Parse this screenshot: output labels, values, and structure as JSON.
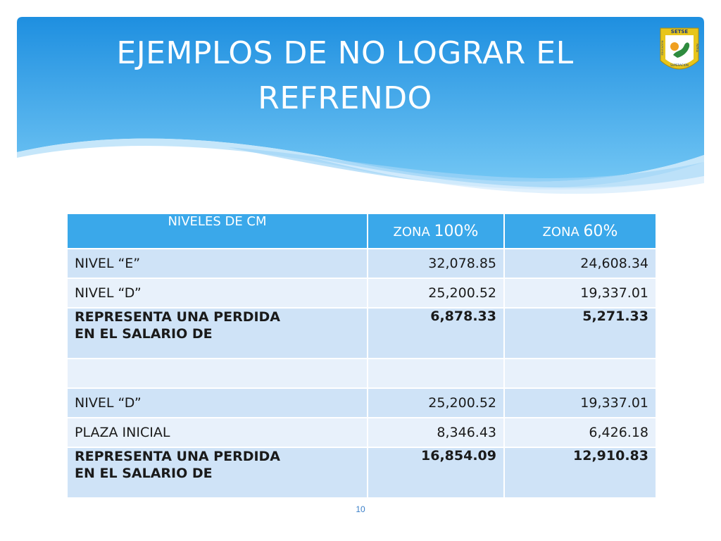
{
  "slide": {
    "title_lines": [
      "EJEMPLOS DE NO LOGRAR EL",
      "REFRENDO"
    ],
    "page_number": "10"
  },
  "logo": {
    "top_text": "SETSE",
    "left_text": "EDUCACION",
    "right_text": "PATRIA",
    "bottom_text": "SUPERACION",
    "colors": {
      "frame": "#e8c51a",
      "inner": "#ffffff",
      "map": "#2e8b3e",
      "sun": "#f0a020"
    }
  },
  "table": {
    "headers": {
      "label": "NIVELES DE CM",
      "zone1_word": "ZONA",
      "zone1_pct": "100%",
      "zone2_word": "ZONA",
      "zone2_pct": "60%"
    },
    "rows": [
      {
        "label": "NIVEL “E”",
        "zona100": "32,078.85",
        "zona60": "24,608.34"
      },
      {
        "label": "NIVEL “D”",
        "zona100": "25,200.52",
        "zona60": "19,337.01"
      },
      {
        "label_line1": "REPRESENTA UNA PERDIDA",
        "label_line2": "EN EL SALARIO DE",
        "zona100": "6,878.33",
        "zona60": "5,271.33"
      },
      {
        "label": "",
        "zona100": "",
        "zona60": ""
      },
      {
        "label": "NIVEL “D”",
        "zona100": "25,200.52",
        "zona60": "19,337.01"
      },
      {
        "label": "PLAZA INICIAL",
        "zona100": "8,346.43",
        "zona60": "6,426.18"
      },
      {
        "label_line1": "REPRESENTA UNA PERDIDA",
        "label_line2": "EN EL SALARIO DE",
        "zona100": "16,854.09",
        "zona60": "12,910.83"
      }
    ]
  },
  "colors": {
    "banner_top": "#1e8fe0",
    "banner_bottom": "#6ec6f5",
    "header_bg": "#3aa8ea",
    "row_dark": "#cfe3f7",
    "row_light": "#e8f1fb",
    "loss_value": "#b01c1c"
  }
}
